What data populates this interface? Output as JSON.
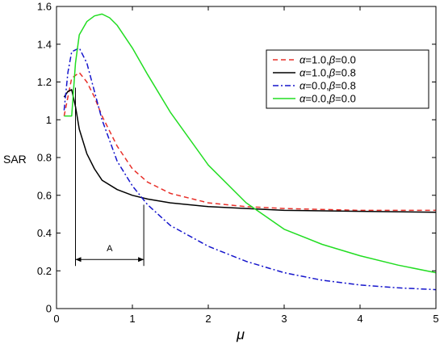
{
  "chart_data": {
    "type": "line",
    "xlabel": "μ",
    "ylabel": "SAR",
    "xlim": [
      0,
      5
    ],
    "ylim": [
      0,
      1.6
    ],
    "xticks": [
      0,
      1,
      2,
      3,
      4,
      5
    ],
    "xtick_labels": [
      "0",
      "1",
      "2",
      "3",
      "4",
      "5"
    ],
    "yticks": [
      0,
      0.2,
      0.4,
      0.6,
      0.8,
      1.0,
      1.2,
      1.4,
      1.6
    ],
    "ytick_labels": [
      "0",
      "0.2",
      "0.4",
      "0.6",
      "0.8",
      "1",
      "1.2",
      "1.4",
      "1.6"
    ],
    "grid": false,
    "legend_position": "top-right",
    "series": [
      {
        "name_parts": {
          "a_sym": "α",
          "a_val": "=1.0,",
          "b_sym": "β",
          "b_val": "=0.0"
        },
        "color": "#e8302a",
        "dash": "dashed",
        "x": [
          0.1,
          0.2,
          0.3,
          0.4,
          0.5,
          0.6,
          0.8,
          1.0,
          1.2,
          1.5,
          2.0,
          2.5,
          3.0,
          4.0,
          5.0
        ],
        "y": [
          1.02,
          1.22,
          1.25,
          1.2,
          1.12,
          1.02,
          0.86,
          0.74,
          0.67,
          0.61,
          0.56,
          0.54,
          0.53,
          0.52,
          0.52
        ]
      },
      {
        "name_parts": {
          "a_sym": "α",
          "a_val": "=1.0,",
          "b_sym": "β",
          "b_val": "=0.8"
        },
        "color": "#000000",
        "dash": "solid",
        "x": [
          0.1,
          0.15,
          0.2,
          0.25,
          0.3,
          0.4,
          0.5,
          0.6,
          0.8,
          1.0,
          1.2,
          1.5,
          2.0,
          2.5,
          3.0,
          4.0,
          5.0
        ],
        "y": [
          1.12,
          1.15,
          1.16,
          1.07,
          0.95,
          0.82,
          0.74,
          0.68,
          0.63,
          0.6,
          0.58,
          0.56,
          0.54,
          0.53,
          0.52,
          0.515,
          0.51
        ]
      },
      {
        "name_parts": {
          "a_sym": "α",
          "a_val": "=0.0,",
          "b_sym": "β",
          "b_val": "=0.8"
        },
        "color": "#1515cc",
        "dash": "dashdot",
        "x": [
          0.1,
          0.15,
          0.2,
          0.3,
          0.4,
          0.5,
          0.6,
          0.8,
          1.0,
          1.2,
          1.5,
          2.0,
          2.5,
          3.0,
          3.5,
          4.0,
          4.5,
          5.0
        ],
        "y": [
          1.05,
          1.25,
          1.36,
          1.38,
          1.3,
          1.15,
          1.0,
          0.78,
          0.65,
          0.55,
          0.44,
          0.33,
          0.25,
          0.19,
          0.15,
          0.125,
          0.11,
          0.1
        ]
      },
      {
        "name_parts": {
          "a_sym": "α",
          "a_val": "=0.0,",
          "b_sym": "β",
          "b_val": "=0.0"
        },
        "color": "#22dd22",
        "dash": "solid",
        "x": [
          0.1,
          0.2,
          0.25,
          0.3,
          0.4,
          0.5,
          0.6,
          0.7,
          0.8,
          1.0,
          1.2,
          1.5,
          2.0,
          2.5,
          3.0,
          3.5,
          4.0,
          4.5,
          5.0
        ],
        "y": [
          1.02,
          1.02,
          1.3,
          1.45,
          1.52,
          1.55,
          1.56,
          1.54,
          1.5,
          1.38,
          1.24,
          1.04,
          0.76,
          0.56,
          0.42,
          0.34,
          0.28,
          0.23,
          0.19
        ]
      }
    ],
    "annotation": {
      "label": "A",
      "x_start": 0.25,
      "x_end": 1.15,
      "bracket_y": 0.26,
      "left_top_y": 1.17,
      "right_top_y": 0.55
    }
  }
}
